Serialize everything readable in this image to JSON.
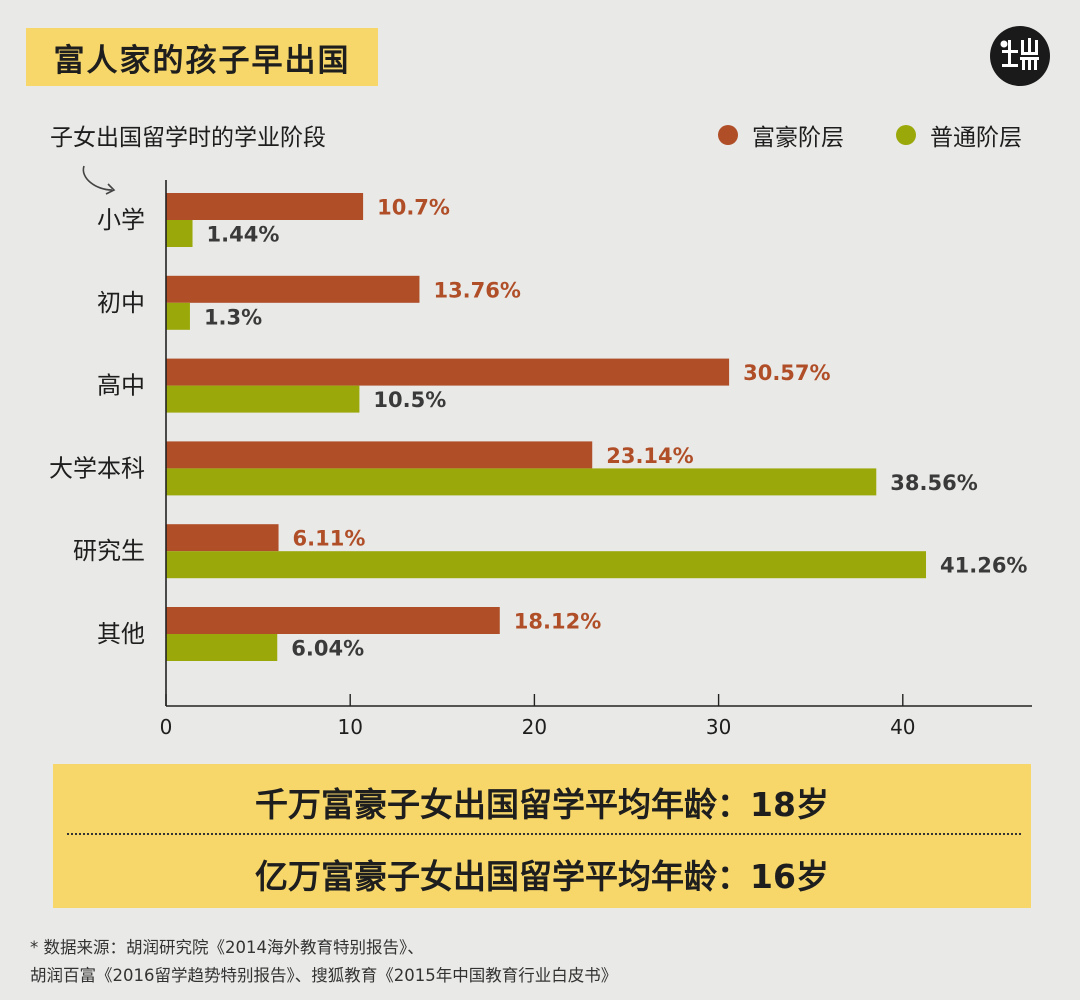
{
  "title": "富人家的孩子早出国",
  "subtitle": "子女出国留学时的学业阶段",
  "colors": {
    "rich": "#b04e28",
    "ordinary": "#9aa80a",
    "value_dark": "#3a3a3a",
    "title_bg": "#f7d76a"
  },
  "chart_data": {
    "type": "bar",
    "orientation": "horizontal",
    "categories": [
      "小学",
      "初中",
      "高中",
      "大学本科",
      "研究生",
      "其他"
    ],
    "series": [
      {
        "name": "富豪阶层",
        "values": [
          10.7,
          13.76,
          30.57,
          23.14,
          6.11,
          18.12
        ],
        "labels": [
          "10.7%",
          "13.76%",
          "30.57%",
          "23.14%",
          "6.11%",
          "18.12%"
        ]
      },
      {
        "name": "普通阶层",
        "values": [
          1.44,
          1.3,
          10.5,
          38.56,
          41.26,
          6.04
        ],
        "labels": [
          "1.44%",
          "1.3%",
          "10.5%",
          "38.56%",
          "41.26%",
          "6.04%"
        ]
      }
    ],
    "x_ticks": [
      "0",
      "10",
      "20",
      "30",
      "40"
    ],
    "xlim": [
      0,
      47
    ],
    "legend_position": "top-right",
    "grid": false
  },
  "info": {
    "line1_text": "千万富豪子女出国留学平均年龄：",
    "line1_value": "18岁",
    "line2_text": "亿万富豪子女出国留学平均年龄：",
    "line2_value": "16岁"
  },
  "source": {
    "line1": "* 数据来源：胡润研究院《2014海外教育特别报告》、",
    "line2": "胡润百富《2016留学趋势特别报告》、搜狐教育《2015年中国教育行业白皮书》"
  }
}
